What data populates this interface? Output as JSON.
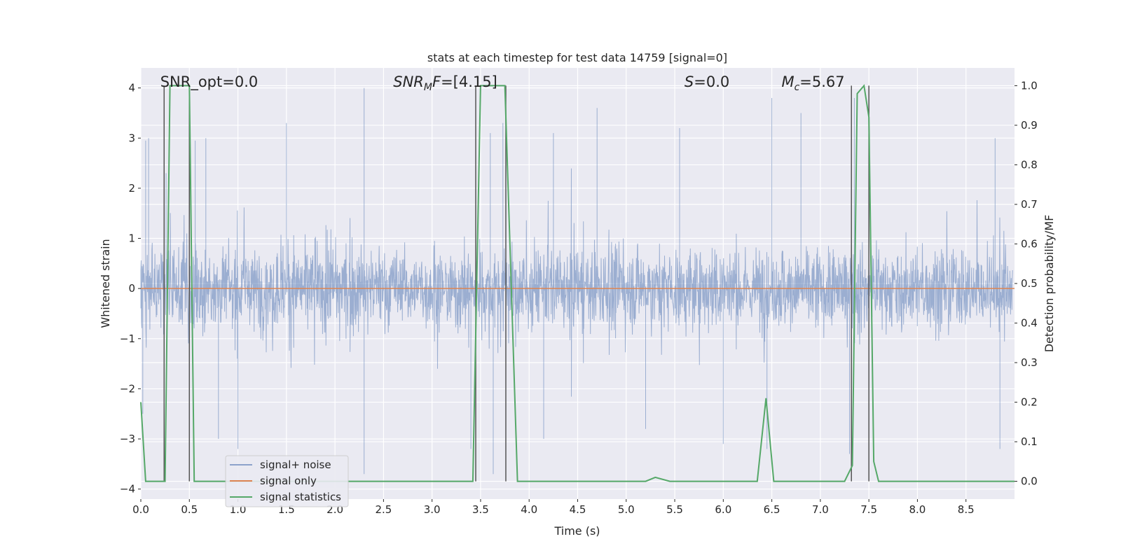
{
  "chart_data": {
    "type": "line",
    "title": "stats at each timestep for test data 14759 [signal=0]",
    "xlabel": "Time (s)",
    "ylabel": "Whitened strain",
    "y2label": "Detection probability/MF",
    "xlim": [
      0.0,
      9.0
    ],
    "ylim": [
      -4.2,
      4.4
    ],
    "y2lim": [
      -0.045,
      1.045
    ],
    "xticks": [
      0.0,
      0.5,
      1.0,
      1.5,
      2.0,
      2.5,
      3.0,
      3.5,
      4.0,
      4.5,
      5.0,
      5.5,
      6.0,
      6.5,
      7.0,
      7.5,
      8.0,
      8.5
    ],
    "xtick_labels": [
      "0.0",
      "0.5",
      "1.0",
      "1.5",
      "2.0",
      "2.5",
      "3.0",
      "3.5",
      "4.0",
      "4.5",
      "5.0",
      "5.5",
      "6.0",
      "6.5",
      "7.0",
      "7.5",
      "8.0",
      "8.5"
    ],
    "yticks": [
      4,
      3,
      2,
      1,
      0,
      -1,
      -2,
      -3,
      -4
    ],
    "ytick_labels": [
      "4",
      "3",
      "2",
      "1",
      "0",
      "−1",
      "−2",
      "−3",
      "−4"
    ],
    "y2ticks": [
      1.0,
      0.9,
      0.8,
      0.7,
      0.6,
      0.5,
      0.4,
      0.3,
      0.2,
      0.1,
      0.0
    ],
    "y2tick_labels": [
      "1.0",
      "0.9",
      "0.8",
      "0.7",
      "0.6",
      "0.5",
      "0.4",
      "0.3",
      "0.2",
      "0.1",
      "0.0"
    ],
    "grid": true,
    "legend_position": "bottom-left",
    "series": [
      {
        "name": "signal+ noise",
        "color": "#4c72b0",
        "axis": "left",
        "description": "dense noise trace, mostly within about ±1.5 with spikes to about ±3.5",
        "peaks": [
          {
            "x": 0.05,
            "y": 2.95
          },
          {
            "x": 0.08,
            "y": 3.0
          },
          {
            "x": 0.26,
            "y": 2.3
          },
          {
            "x": 0.5,
            "y": 2.2
          },
          {
            "x": 0.56,
            "y": 2.95
          },
          {
            "x": 0.67,
            "y": 3.0
          },
          {
            "x": 1.5,
            "y": 3.3
          },
          {
            "x": 2.3,
            "y": 4.0
          },
          {
            "x": 3.6,
            "y": 3.1
          },
          {
            "x": 3.73,
            "y": 3.3
          },
          {
            "x": 4.25,
            "y": 3.1
          },
          {
            "x": 4.7,
            "y": 3.6
          },
          {
            "x": 5.55,
            "y": 3.2
          },
          {
            "x": 6.5,
            "y": 3.8
          },
          {
            "x": 6.8,
            "y": 3.5
          },
          {
            "x": 7.35,
            "y": 3.8
          },
          {
            "x": 8.8,
            "y": 3.0
          }
        ],
        "troughs": [
          {
            "x": 0.02,
            "y": -2.5
          },
          {
            "x": 0.5,
            "y": -2.6
          },
          {
            "x": 0.8,
            "y": -3.0
          },
          {
            "x": 1.0,
            "y": -3.2
          },
          {
            "x": 2.3,
            "y": -3.7
          },
          {
            "x": 3.4,
            "y": -3.2
          },
          {
            "x": 3.63,
            "y": -3.7
          },
          {
            "x": 4.15,
            "y": -3.0
          },
          {
            "x": 5.2,
            "y": -2.8
          },
          {
            "x": 6.0,
            "y": -3.1
          },
          {
            "x": 6.45,
            "y": -3.2
          },
          {
            "x": 7.3,
            "y": -3.3
          },
          {
            "x": 8.85,
            "y": -3.2
          }
        ]
      },
      {
        "name": "signal only",
        "color": "#dd8452",
        "axis": "left",
        "x": [
          0.0,
          9.0
        ],
        "y": [
          0.0,
          0.0
        ]
      },
      {
        "name": "signal statistics",
        "color": "#55a868",
        "axis": "right",
        "x": [
          0.0,
          0.05,
          0.25,
          0.3,
          0.5,
          0.55,
          3.42,
          3.5,
          3.75,
          3.88,
          5.2,
          5.3,
          5.45,
          6.35,
          6.44,
          6.52,
          7.25,
          7.33,
          7.38,
          7.45,
          7.5,
          7.55,
          7.6,
          9.0
        ],
        "y": [
          0.2,
          0.0,
          0.0,
          1.0,
          1.0,
          0.0,
          0.0,
          1.0,
          1.0,
          0.0,
          0.0,
          0.01,
          0.0,
          0.0,
          0.21,
          0.0,
          0.0,
          0.04,
          0.98,
          1.0,
          0.92,
          0.05,
          0.0,
          0.0
        ]
      }
    ],
    "vlines": [
      0.24,
      0.5,
      3.45,
      3.76,
      7.32,
      7.5
    ],
    "annotations": [
      {
        "label": "SNR_opt=0.0",
        "x": 0.2
      },
      {
        "label": "SNR",
        "sub": "M",
        "tail": "F=[4.15]",
        "italic": true,
        "x": 2.6
      },
      {
        "label": "S",
        "tail": "=0.0",
        "italic": true,
        "x": 5.6
      },
      {
        "label": "M",
        "sub": "c",
        "tail": "=5.67",
        "italic": true,
        "x": 6.6
      }
    ]
  }
}
